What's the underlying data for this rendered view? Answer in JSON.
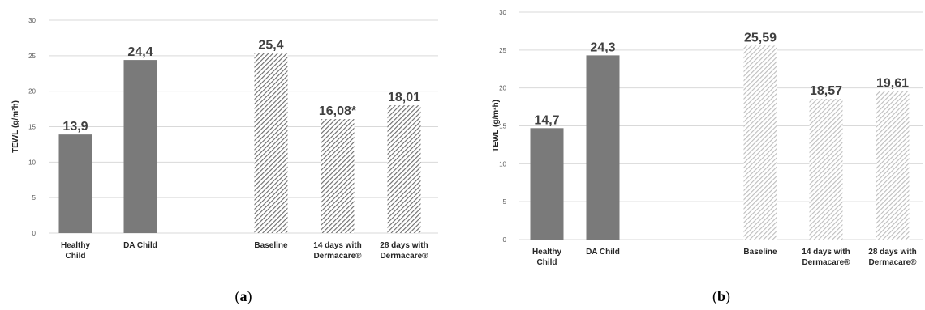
{
  "chart_data": [
    {
      "type": "bar",
      "panel_label": "a",
      "ylabel": "TEWL (g/m²h)",
      "ylim": [
        0,
        30
      ],
      "yticks": [
        0,
        5,
        10,
        15,
        20,
        25,
        30
      ],
      "categories": [
        [
          "Healthy",
          "Child"
        ],
        [
          "DA Child"
        ],
        [
          "Baseline"
        ],
        [
          "14 days with",
          "Dermacare®"
        ],
        [
          "28 days with",
          "Dermacare®"
        ]
      ],
      "values": [
        13.9,
        24.4,
        25.4,
        16.08,
        18.01
      ],
      "data_labels": [
        "13,9",
        "24,4",
        "25,4",
        "16,08*",
        "18,01"
      ],
      "fills": [
        "solid",
        "solid",
        "hatch",
        "hatch",
        "hatch"
      ],
      "colors": {
        "solid": "#7a7a7a",
        "hatch": "#6b6b6b",
        "grid": "#d9d9d9"
      },
      "grid": true
    },
    {
      "type": "bar",
      "panel_label": "b",
      "ylabel": "TEWL (g/m²h)",
      "ylim": [
        0,
        30
      ],
      "yticks": [
        0,
        5,
        10,
        15,
        20,
        25,
        30
      ],
      "categories": [
        [
          "Healthy",
          "Child"
        ],
        [
          "DA Child"
        ],
        [
          "Baseline"
        ],
        [
          "14 days with",
          "Dermacare®"
        ],
        [
          "28 days with",
          "Dermacare®"
        ]
      ],
      "values": [
        14.7,
        24.3,
        25.59,
        18.57,
        19.61
      ],
      "data_labels": [
        "14,7",
        "24,3",
        "25,59",
        "18,57",
        "19,61"
      ],
      "fills": [
        "solid",
        "solid",
        "hatch",
        "hatch",
        "hatch"
      ],
      "colors": {
        "solid": "#7a7a7a",
        "hatch": "#bdbdbd",
        "grid": "#d9d9d9"
      },
      "grid": true
    }
  ]
}
